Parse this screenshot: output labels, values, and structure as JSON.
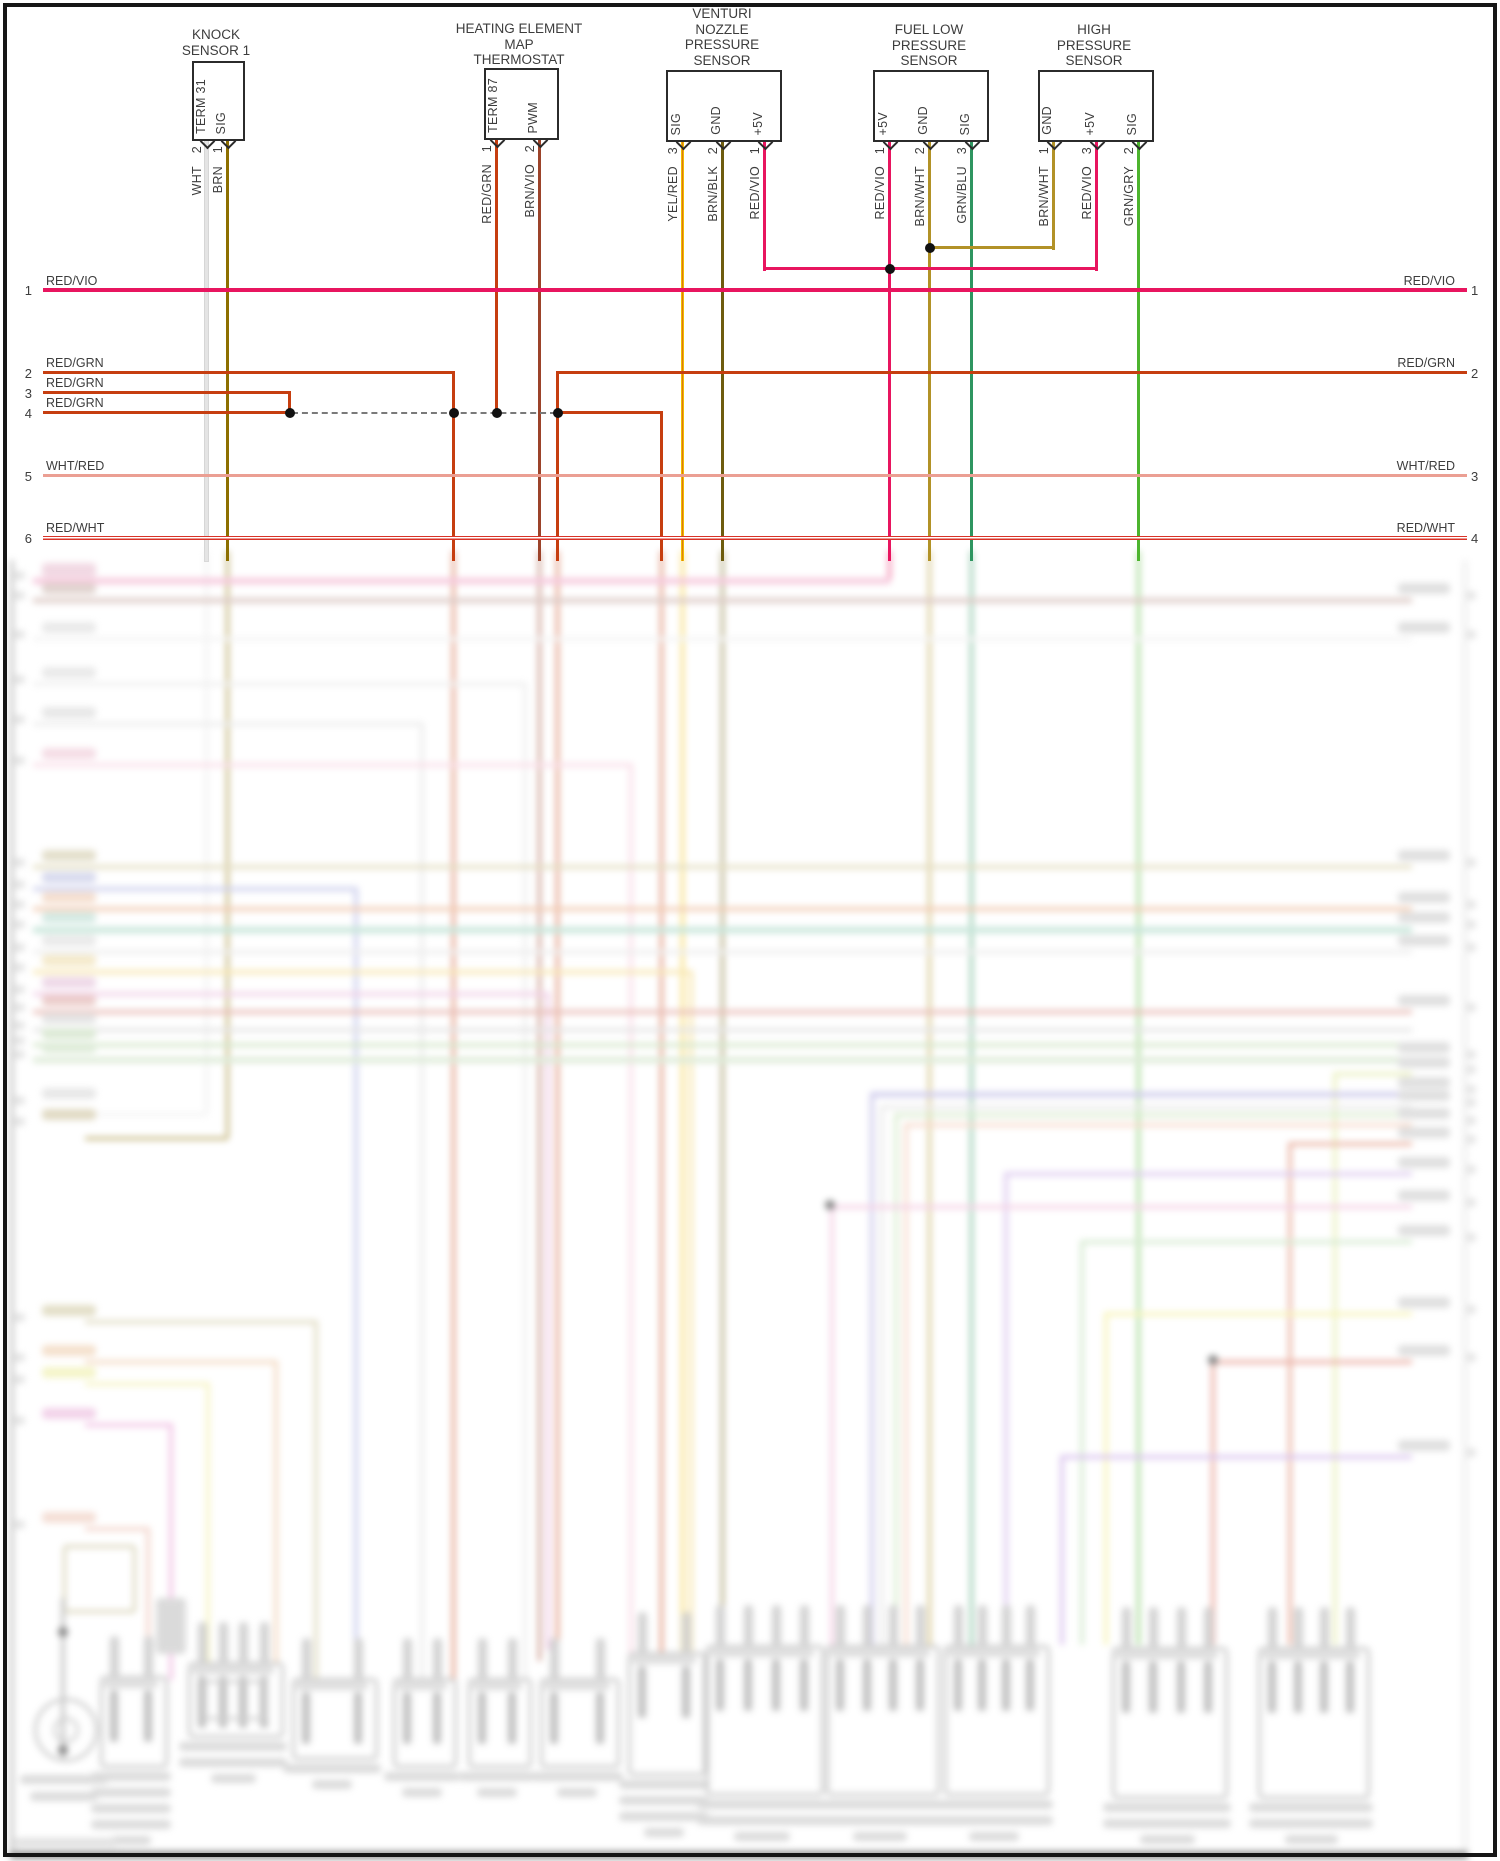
{
  "page": {
    "background": "#ffffff",
    "frame_color": "#161616",
    "dashed_bus_color": "#7a7a7a"
  },
  "sensors": [
    {
      "id": "knock-sensor-1",
      "title": "KNOCK\nSENSOR 1",
      "pins": [
        {
          "name": "TERM 31",
          "num": "2",
          "wire": "WHT"
        },
        {
          "name": "SIG",
          "num": "1",
          "wire": "BRN"
        }
      ]
    },
    {
      "id": "heating-element-map-thermostat",
      "title": "HEATING ELEMENT\nMAP\nTHERMOSTAT",
      "pins": [
        {
          "name": "TERM 87",
          "num": "1",
          "wire": "RED/GRN"
        },
        {
          "name": "PWM",
          "num": "2",
          "wire": "BRN/VIO"
        }
      ]
    },
    {
      "id": "venturi-nozzle-pressure-sensor",
      "title": "VENTURI\nNOZZLE\nPRESSURE\nSENSOR",
      "pins": [
        {
          "name": "SIG",
          "num": "3",
          "wire": "YEL/RED"
        },
        {
          "name": "GND",
          "num": "2",
          "wire": "BRN/BLK"
        },
        {
          "name": "+5V",
          "num": "1",
          "wire": "RED/VIO"
        }
      ]
    },
    {
      "id": "fuel-low-pressure-sensor",
      "title": "FUEL LOW\nPRESSURE\nSENSOR",
      "pins": [
        {
          "name": "+5V",
          "num": "1",
          "wire": "RED/VIO"
        },
        {
          "name": "GND",
          "num": "2",
          "wire": "BRN/WHT"
        },
        {
          "name": "SIG",
          "num": "3",
          "wire": "GRN/BLU"
        }
      ]
    },
    {
      "id": "high-pressure-sensor",
      "title": "HIGH\nPRESSURE\nSENSOR",
      "pins": [
        {
          "name": "GND",
          "num": "1",
          "wire": "BRN/WHT"
        },
        {
          "name": "+5V",
          "num": "3",
          "wire": "RED/VIO"
        },
        {
          "name": "SIG",
          "num": "2",
          "wire": "GRN/GRY"
        }
      ]
    }
  ],
  "left_rows": [
    {
      "num": "1",
      "label": "RED/VIO"
    },
    {
      "num": "2",
      "label": "RED/GRN"
    },
    {
      "num": "3",
      "label": "RED/GRN"
    },
    {
      "num": "4",
      "label": "RED/GRN"
    },
    {
      "num": "5",
      "label": "WHT/RED"
    },
    {
      "num": "6",
      "label": "RED/WHT"
    }
  ],
  "right_rows": [
    {
      "label": "RED/VIO",
      "num": "1"
    },
    {
      "label": "RED/GRN",
      "num": "2"
    },
    {
      "label": "WHT/RED",
      "num": "3"
    },
    {
      "label": "RED/WHT",
      "num": "4"
    }
  ],
  "wire_colors": {
    "WHT": "#e4e4e4",
    "BRN": "#8d6f00",
    "RED/GRN": "#c63e10",
    "BRN/VIO": "#9c432a",
    "YEL/RED": "#f0bd00",
    "BRN/BLK": "#6e5c0e",
    "RED/VIO": "#e8155f",
    "BRN/WHT": "#b29227",
    "GRN/BLU": "#2e9560",
    "GRN/GRY": "#4db42e",
    "WHT/RED": "#eb9f93",
    "RED/WHT": "#d93327"
  }
}
